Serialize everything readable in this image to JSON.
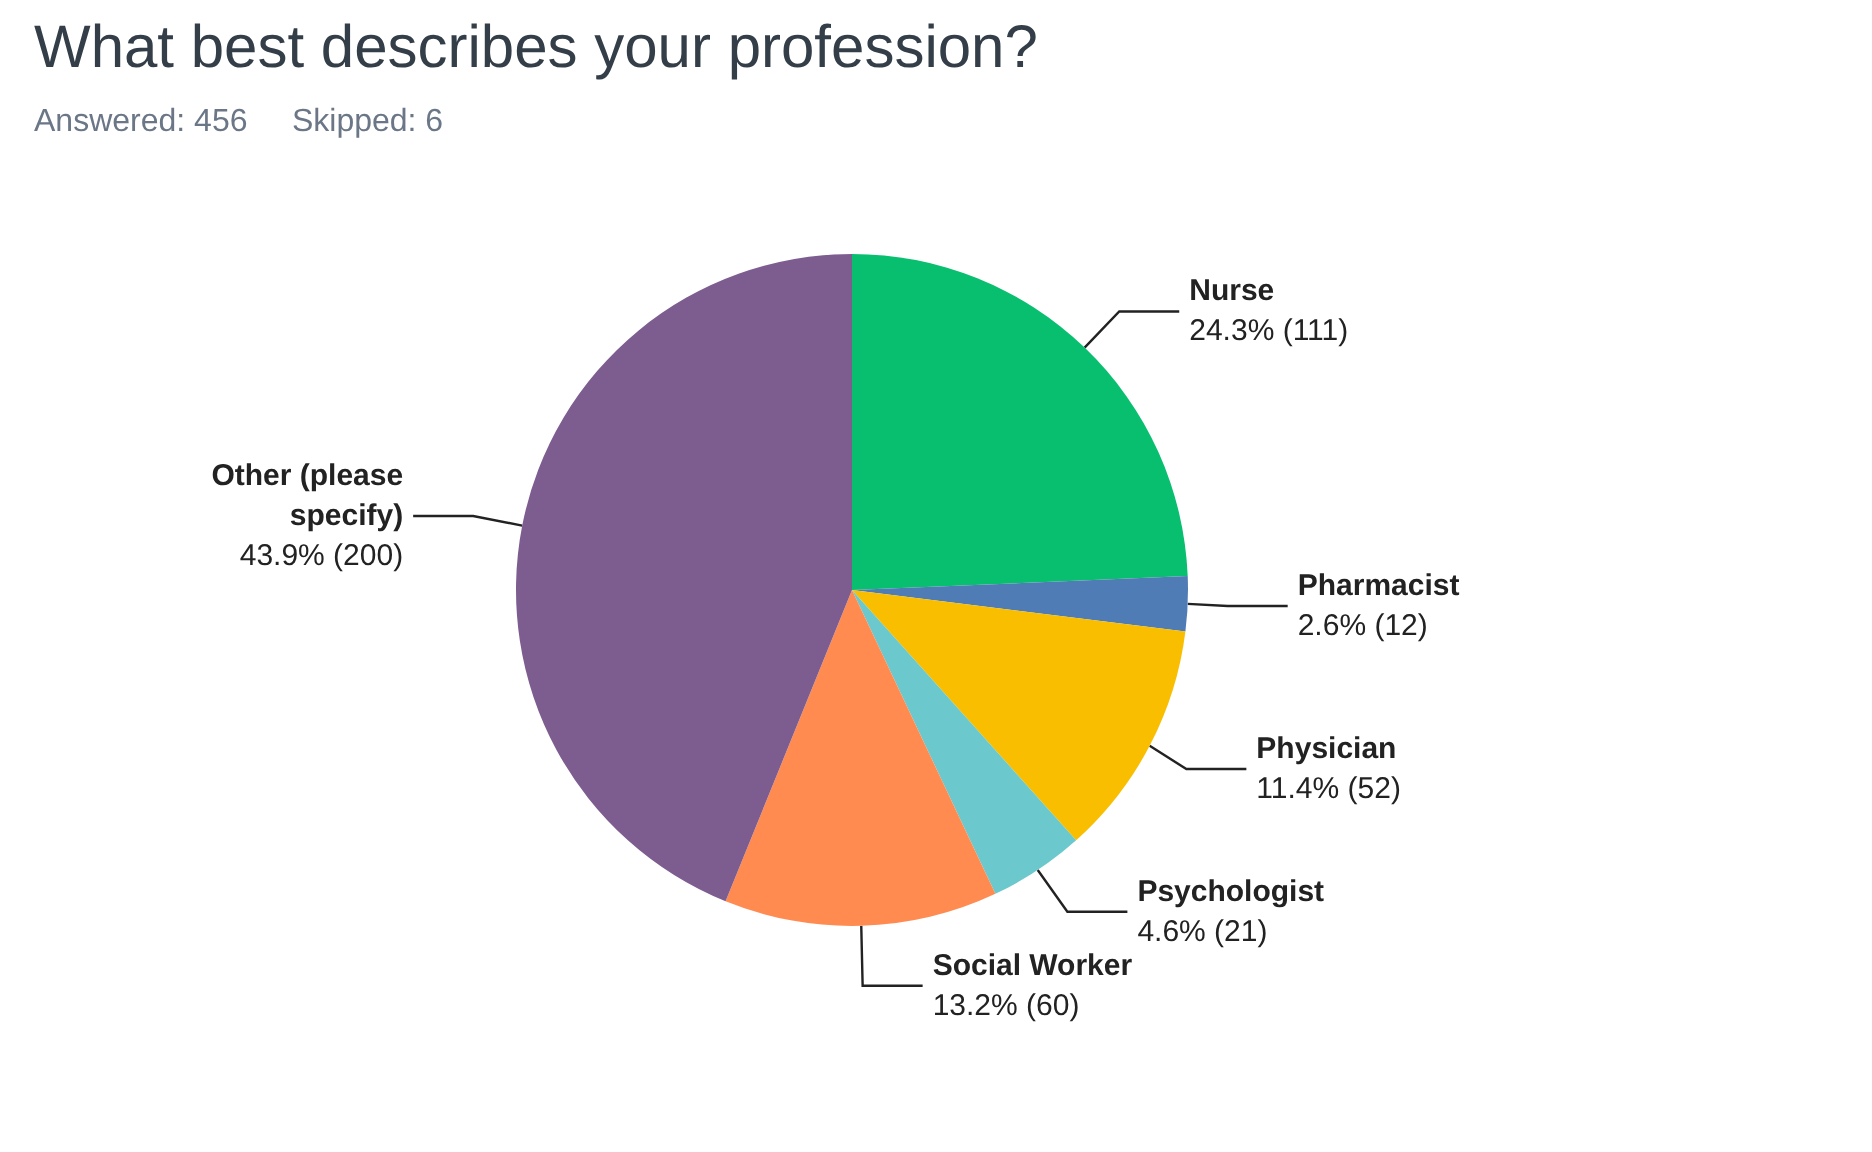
{
  "chart_data": {
    "type": "pie",
    "title": "What best describes your profession?",
    "subtitle": "Answered: 456     Skipped: 6",
    "categories": [
      "Nurse",
      "Pharmacist",
      "Physician",
      "Psychologist",
      "Social Worker",
      "Other (please\nspecify)"
    ],
    "values": [
      111,
      12,
      52,
      21,
      60,
      200
    ],
    "value_labels": [
      "24.3% (111)",
      "2.6% (12)",
      "11.4% (52)",
      "4.6% (21)",
      "13.2% (60)",
      "43.9% (200)"
    ],
    "colors": [
      "#08bf6f",
      "#507cb6",
      "#f9be00",
      "#6bc8cd",
      "#ff8b50",
      "#7d5c8f"
    ],
    "legend": false
  }
}
